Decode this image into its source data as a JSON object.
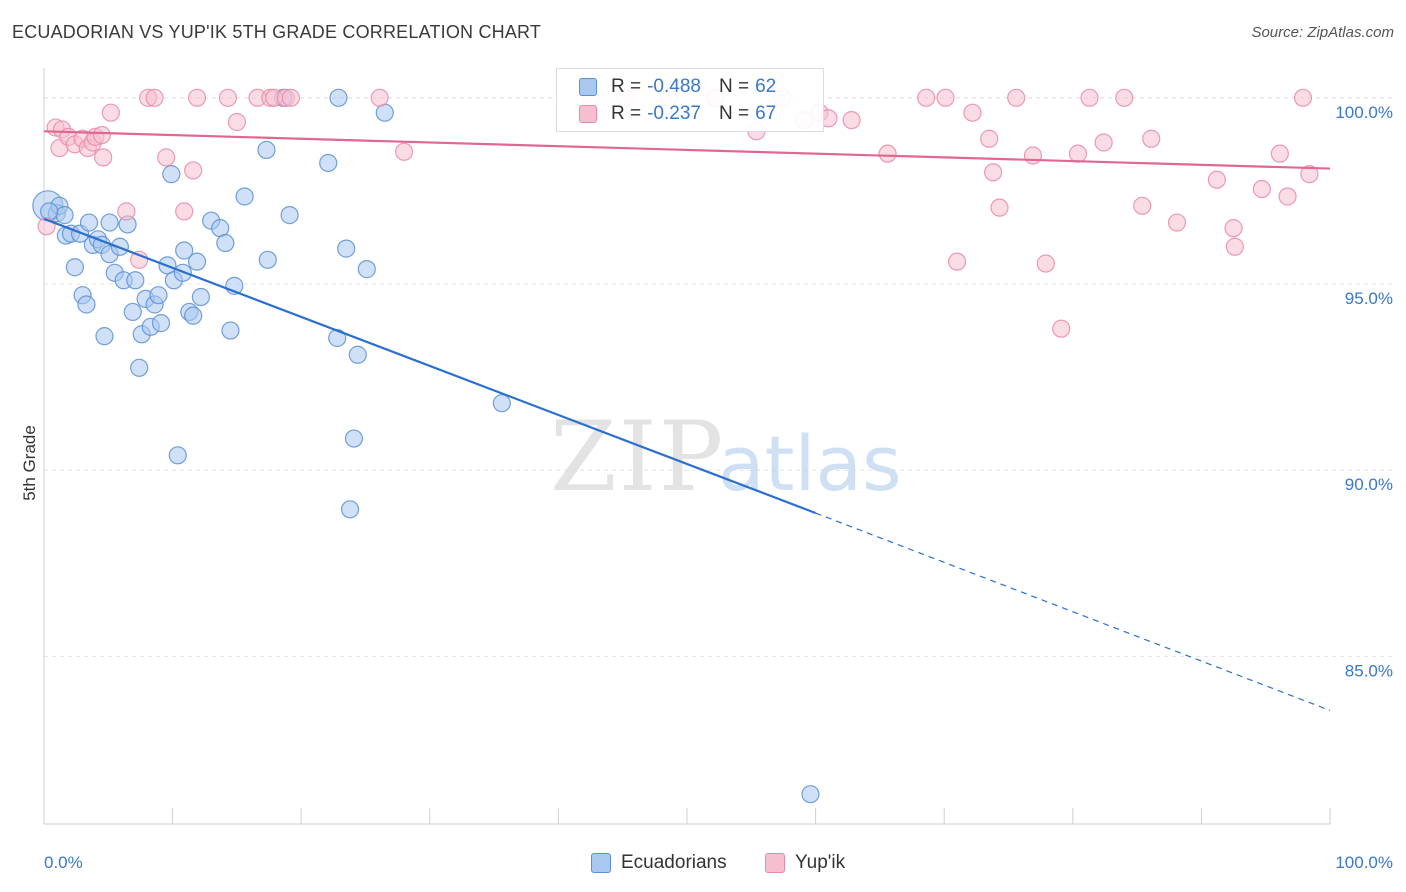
{
  "header": {
    "title": "ECUADORIAN VS YUP'IK 5TH GRADE CORRELATION CHART",
    "source": "Source: ZipAtlas.com"
  },
  "watermark": {
    "zip": "ZIP",
    "atlas": "atlas"
  },
  "legend": {
    "r_label": "R = ",
    "n_label": "N = ",
    "series": [
      {
        "name": "Ecuadorians",
        "r": "-0.488",
        "n": "62"
      },
      {
        "name": "Yup'ik",
        "r": "-0.237",
        "n": "67"
      }
    ]
  },
  "colors": {
    "blue_fill": "#a9c8f0",
    "blue_stroke": "#5b8fd6",
    "blue_line": "#2b6fd1",
    "pink_fill": "#f6bfd0",
    "pink_stroke": "#e98aa8",
    "pink_line": "#e0678f",
    "tick_label": "#3a78c9",
    "grid": "#e3e3e3"
  },
  "chart_data": {
    "type": "scatter",
    "title": "ECUADORIAN VS YUP'IK 5TH GRADE CORRELATION CHART",
    "xlabel": "",
    "ylabel": "5th Grade",
    "xlim": [
      0,
      100
    ],
    "ylim": [
      80.5,
      100.8
    ],
    "x_tick_labels": [
      {
        "value": 0,
        "label": "0.0%"
      },
      {
        "value": 100,
        "label": "100.0%"
      }
    ],
    "y_tick_labels": [
      {
        "value": 100,
        "label": "100.0%"
      },
      {
        "value": 95,
        "label": "95.0%"
      },
      {
        "value": 90,
        "label": "90.0%"
      },
      {
        "value": 85,
        "label": "85.0%"
      }
    ],
    "x_minor_ticks": [
      10,
      20,
      30,
      40,
      50,
      60,
      70,
      80,
      90
    ],
    "legend_position": "top-center",
    "series": [
      {
        "name": "Ecuadorians",
        "color": "#a9c8f0",
        "r": -0.488,
        "n": 62,
        "trend": {
          "x0": 0,
          "y0": 96.75,
          "x1": 60,
          "y1": 88.85,
          "dash_x1": 100,
          "dash_y1": 83.55
        },
        "points": [
          [
            0.3,
            97.1
          ],
          [
            1.0,
            96.9
          ],
          [
            1.2,
            97.1
          ],
          [
            1.6,
            96.85
          ],
          [
            1.7,
            96.3
          ],
          [
            2.1,
            96.35
          ],
          [
            2.4,
            95.45
          ],
          [
            2.8,
            96.35
          ],
          [
            3.0,
            94.7
          ],
          [
            3.3,
            94.45
          ],
          [
            3.5,
            96.65
          ],
          [
            3.8,
            96.05
          ],
          [
            4.2,
            96.2
          ],
          [
            4.5,
            96.05
          ],
          [
            4.7,
            93.6
          ],
          [
            5.1,
            95.8
          ],
          [
            5.1,
            96.65
          ],
          [
            5.5,
            95.3
          ],
          [
            5.9,
            96.0
          ],
          [
            6.2,
            95.1
          ],
          [
            6.5,
            96.6
          ],
          [
            6.9,
            94.25
          ],
          [
            7.1,
            95.1
          ],
          [
            7.4,
            92.75
          ],
          [
            7.6,
            93.65
          ],
          [
            7.9,
            94.6
          ],
          [
            8.3,
            93.85
          ],
          [
            8.6,
            94.45
          ],
          [
            8.9,
            94.7
          ],
          [
            9.1,
            93.95
          ],
          [
            9.6,
            95.5
          ],
          [
            9.9,
            97.95
          ],
          [
            10.1,
            95.1
          ],
          [
            10.4,
            90.4
          ],
          [
            10.8,
            95.3
          ],
          [
            10.9,
            95.9
          ],
          [
            11.3,
            94.25
          ],
          [
            11.6,
            94.15
          ],
          [
            11.9,
            95.6
          ],
          [
            12.2,
            94.65
          ],
          [
            13.0,
            96.7
          ],
          [
            13.7,
            96.5
          ],
          [
            14.1,
            96.1
          ],
          [
            14.5,
            93.75
          ],
          [
            14.8,
            94.95
          ],
          [
            15.6,
            97.35
          ],
          [
            17.3,
            98.6
          ],
          [
            17.4,
            95.65
          ],
          [
            18.6,
            100.0
          ],
          [
            19.1,
            96.85
          ],
          [
            22.1,
            98.25
          ],
          [
            22.8,
            93.55
          ],
          [
            22.9,
            100.0
          ],
          [
            23.5,
            95.95
          ],
          [
            23.8,
            88.95
          ],
          [
            24.1,
            90.85
          ],
          [
            24.4,
            93.1
          ],
          [
            25.1,
            95.4
          ],
          [
            26.5,
            99.6
          ],
          [
            35.6,
            91.8
          ],
          [
            59.6,
            81.3
          ],
          [
            0.4,
            96.95
          ]
        ]
      },
      {
        "name": "Yup'ik",
        "color": "#f6bfd0",
        "r": -0.237,
        "n": 67,
        "trend": {
          "x0": 0,
          "y0": 99.1,
          "x1": 100,
          "y1": 98.1
        },
        "points": [
          [
            0.2,
            96.55
          ],
          [
            0.9,
            99.2
          ],
          [
            1.2,
            98.65
          ],
          [
            1.4,
            99.15
          ],
          [
            1.9,
            98.95
          ],
          [
            2.4,
            98.75
          ],
          [
            3.0,
            98.9
          ],
          [
            3.4,
            98.65
          ],
          [
            3.8,
            98.8
          ],
          [
            4.0,
            98.95
          ],
          [
            4.5,
            99.0
          ],
          [
            4.6,
            98.4
          ],
          [
            5.2,
            99.6
          ],
          [
            6.4,
            96.95
          ],
          [
            7.4,
            95.65
          ],
          [
            8.1,
            100.0
          ],
          [
            8.6,
            100.0
          ],
          [
            9.5,
            98.4
          ],
          [
            10.9,
            96.95
          ],
          [
            11.6,
            98.05
          ],
          [
            11.9,
            100.0
          ],
          [
            14.3,
            100.0
          ],
          [
            15.0,
            99.35
          ],
          [
            16.6,
            100.0
          ],
          [
            17.6,
            100.0
          ],
          [
            17.9,
            100.0
          ],
          [
            18.8,
            100.0
          ],
          [
            19.2,
            100.0
          ],
          [
            26.1,
            100.0
          ],
          [
            28.0,
            98.55
          ],
          [
            42.5,
            100.0
          ],
          [
            45.2,
            100.0
          ],
          [
            48.6,
            100.0
          ],
          [
            52.2,
            100.0
          ],
          [
            55.4,
            99.1
          ],
          [
            57.4,
            100.0
          ],
          [
            59.1,
            99.4
          ],
          [
            60.3,
            99.6
          ],
          [
            61.0,
            99.45
          ],
          [
            62.8,
            99.4
          ],
          [
            65.6,
            98.5
          ],
          [
            68.6,
            100.0
          ],
          [
            70.1,
            100.0
          ],
          [
            71.0,
            95.6
          ],
          [
            72.2,
            99.6
          ],
          [
            73.5,
            98.9
          ],
          [
            73.8,
            98.0
          ],
          [
            74.3,
            97.05
          ],
          [
            75.6,
            100.0
          ],
          [
            76.9,
            98.45
          ],
          [
            77.9,
            95.55
          ],
          [
            79.1,
            93.8
          ],
          [
            80.4,
            98.5
          ],
          [
            81.3,
            100.0
          ],
          [
            82.4,
            98.8
          ],
          [
            84.0,
            100.0
          ],
          [
            85.4,
            97.1
          ],
          [
            86.1,
            98.9
          ],
          [
            88.1,
            96.65
          ],
          [
            91.2,
            97.8
          ],
          [
            92.5,
            96.5
          ],
          [
            92.6,
            96.0
          ],
          [
            94.7,
            97.55
          ],
          [
            96.1,
            98.5
          ],
          [
            96.7,
            97.35
          ],
          [
            97.9,
            100.0
          ],
          [
            98.4,
            97.95
          ]
        ]
      }
    ]
  }
}
